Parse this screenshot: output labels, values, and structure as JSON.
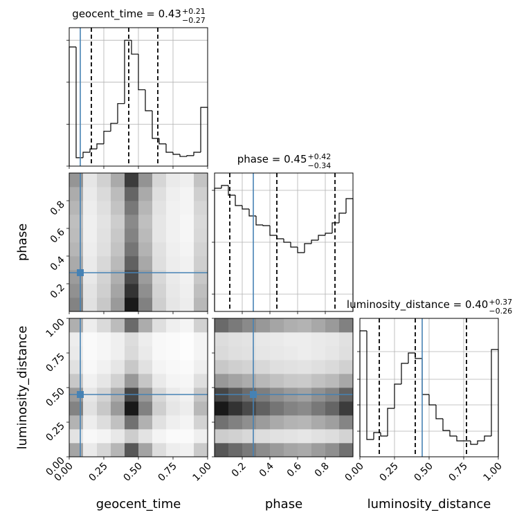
{
  "chart_data": [
    {
      "type": "histogram",
      "title": "geocent_time = 0.43",
      "title_sup": "+0.21",
      "title_sub": "−0.27",
      "bins": [
        0,
        0.05,
        0.1,
        0.15,
        0.2,
        0.25,
        0.3,
        0.35,
        0.4,
        0.45,
        0.5,
        0.55,
        0.6,
        0.65,
        0.7,
        0.75,
        0.8,
        0.85,
        0.9,
        0.95,
        1
      ],
      "values": [
        284,
        20,
        33,
        41,
        53,
        83,
        102,
        149,
        300,
        267,
        182,
        132,
        66,
        53,
        33,
        28,
        23,
        25,
        33,
        140
      ],
      "quantiles": [
        0.16,
        0.43,
        0.64
      ],
      "truth": 0.08,
      "xlim": [
        0,
        1
      ],
      "xticks": [
        0,
        0.25,
        0.5,
        0.75,
        1
      ],
      "ylim": [
        0,
        330
      ],
      "yticks": [
        0,
        100,
        200,
        300
      ],
      "grid": true,
      "xticklabels": false
    },
    {
      "type": "hist2d",
      "ylabel": "phase",
      "xlim": [
        0,
        1
      ],
      "xticks": [
        0,
        0.25,
        0.5,
        0.75,
        1
      ],
      "ylim": [
        0,
        1
      ],
      "yticks": [
        0.2,
        0.4,
        0.6,
        0.8
      ],
      "grid": false,
      "xticklabels": false,
      "yticklabels": true,
      "truth": [
        0.08,
        0.28
      ],
      "z": [
        [
          0.54,
          0.13,
          0.24,
          0.44,
          1.0,
          0.55,
          0.21,
          0.11,
          0.08,
          0.31
        ],
        [
          0.48,
          0.12,
          0.21,
          0.39,
          0.89,
          0.49,
          0.19,
          0.1,
          0.07,
          0.28
        ],
        [
          0.43,
          0.1,
          0.19,
          0.35,
          0.79,
          0.43,
          0.17,
          0.09,
          0.06,
          0.24
        ],
        [
          0.37,
          0.09,
          0.17,
          0.3,
          0.69,
          0.38,
          0.14,
          0.08,
          0.06,
          0.21
        ],
        [
          0.32,
          0.08,
          0.14,
          0.26,
          0.6,
          0.33,
          0.13,
          0.07,
          0.05,
          0.19
        ],
        [
          0.29,
          0.07,
          0.13,
          0.24,
          0.54,
          0.3,
          0.11,
          0.06,
          0.04,
          0.17
        ],
        [
          0.28,
          0.07,
          0.12,
          0.22,
          0.51,
          0.28,
          0.11,
          0.06,
          0.04,
          0.16
        ],
        [
          0.32,
          0.08,
          0.14,
          0.26,
          0.59,
          0.32,
          0.12,
          0.06,
          0.05,
          0.18
        ],
        [
          0.36,
          0.09,
          0.16,
          0.29,
          0.67,
          0.37,
          0.14,
          0.07,
          0.05,
          0.21
        ],
        [
          0.46,
          0.11,
          0.2,
          0.37,
          0.85,
          0.47,
          0.18,
          0.09,
          0.07,
          0.26
        ]
      ]
    },
    {
      "type": "histogram",
      "title": "phase = 0.45",
      "title_sup": "+0.42",
      "title_sub": "−0.34",
      "bins": [
        0,
        0.05,
        0.1,
        0.15,
        0.2,
        0.25,
        0.3,
        0.35,
        0.4,
        0.45,
        0.5,
        0.55,
        0.6,
        0.65,
        0.7,
        0.75,
        0.8,
        0.85,
        0.9,
        0.95,
        1
      ],
      "values": [
        178,
        182,
        168,
        153,
        148,
        138,
        125,
        124,
        110,
        105,
        100,
        93,
        85,
        98,
        103,
        110,
        113,
        128,
        142,
        163
      ],
      "quantiles": [
        0.11,
        0.45,
        0.87
      ],
      "truth": 0.28,
      "xlim": [
        0,
        1
      ],
      "xticks": [
        0.2,
        0.4,
        0.6,
        0.8
      ],
      "ylim": [
        0,
        200
      ],
      "yticks": [
        25,
        100,
        175
      ],
      "grid": true,
      "xticklabels": false
    },
    {
      "type": "hist2d",
      "xlabel": "geocent_time",
      "ylabel": "luminosity_distance",
      "xlim": [
        0,
        1
      ],
      "xticks": [
        {
          "value": 0,
          "label": "0.00"
        },
        {
          "value": 0.25,
          "label": "0.25"
        },
        {
          "value": 0.5,
          "label": "0.50"
        },
        {
          "value": 0.75,
          "label": "0.75"
        },
        {
          "value": 1,
          "label": "1.00"
        }
      ],
      "ylim": [
        0,
        1
      ],
      "yticks": [
        {
          "value": 0,
          "label": "0.00"
        },
        {
          "value": 0.25,
          "label": "0.25"
        },
        {
          "value": 0.5,
          "label": "0.50"
        },
        {
          "value": 0.75,
          "label": "0.75"
        },
        {
          "value": 1,
          "label": "1.00"
        }
      ],
      "grid": false,
      "xticklabels": true,
      "yticklabels": true,
      "truth": [
        0.08,
        0.45
      ],
      "z": [
        [
          0.39,
          0.09,
          0.18,
          0.32,
          0.73,
          0.4,
          0.15,
          0.08,
          0.06,
          0.23
        ],
        [
          0.12,
          0.03,
          0.05,
          0.1,
          0.22,
          0.12,
          0.05,
          0.02,
          0.02,
          0.07
        ],
        [
          0.33,
          0.08,
          0.15,
          0.27,
          0.62,
          0.34,
          0.13,
          0.07,
          0.05,
          0.19
        ],
        [
          0.54,
          0.13,
          0.24,
          0.44,
          1.0,
          0.55,
          0.21,
          0.11,
          0.08,
          0.31
        ],
        [
          0.44,
          0.11,
          0.19,
          0.36,
          0.81,
          0.45,
          0.17,
          0.09,
          0.06,
          0.25
        ],
        [
          0.24,
          0.06,
          0.11,
          0.2,
          0.45,
          0.25,
          0.09,
          0.05,
          0.04,
          0.14
        ],
        [
          0.13,
          0.03,
          0.06,
          0.11,
          0.24,
          0.13,
          0.05,
          0.03,
          0.02,
          0.07
        ],
        [
          0.09,
          0.02,
          0.04,
          0.07,
          0.16,
          0.09,
          0.03,
          0.02,
          0.01,
          0.05
        ],
        [
          0.08,
          0.02,
          0.04,
          0.07,
          0.15,
          0.08,
          0.03,
          0.02,
          0.01,
          0.05
        ],
        [
          0.35,
          0.08,
          0.16,
          0.29,
          0.65,
          0.36,
          0.14,
          0.07,
          0.05,
          0.2
        ]
      ]
    },
    {
      "type": "hist2d",
      "xlabel": "phase",
      "xlim": [
        0,
        1
      ],
      "xticks": [
        0.2,
        0.4,
        0.6,
        0.8
      ],
      "ylim": [
        0,
        1
      ],
      "yticks": [
        0,
        0.25,
        0.5,
        0.75,
        1
      ],
      "grid": false,
      "xticklabels": true,
      "yticklabels": false,
      "truth": [
        0.28,
        0.45
      ],
      "z": [
        [
          0.73,
          0.65,
          0.58,
          0.5,
          0.44,
          0.39,
          0.37,
          0.43,
          0.49,
          0.62
        ],
        [
          0.22,
          0.2,
          0.17,
          0.15,
          0.13,
          0.12,
          0.11,
          0.13,
          0.15,
          0.19
        ],
        [
          0.62,
          0.55,
          0.49,
          0.43,
          0.37,
          0.33,
          0.32,
          0.37,
          0.42,
          0.53
        ],
        [
          1.0,
          0.89,
          0.79,
          0.69,
          0.6,
          0.54,
          0.51,
          0.59,
          0.67,
          0.85
        ],
        [
          0.81,
          0.72,
          0.64,
          0.56,
          0.49,
          0.44,
          0.41,
          0.48,
          0.54,
          0.69
        ],
        [
          0.45,
          0.4,
          0.36,
          0.31,
          0.27,
          0.24,
          0.23,
          0.27,
          0.3,
          0.38
        ],
        [
          0.24,
          0.21,
          0.19,
          0.17,
          0.14,
          0.13,
          0.12,
          0.14,
          0.16,
          0.2
        ],
        [
          0.16,
          0.14,
          0.13,
          0.11,
          0.1,
          0.09,
          0.08,
          0.09,
          0.11,
          0.14
        ],
        [
          0.15,
          0.13,
          0.12,
          0.1,
          0.09,
          0.08,
          0.08,
          0.09,
          0.1,
          0.13
        ],
        [
          0.65,
          0.58,
          0.51,
          0.45,
          0.39,
          0.35,
          0.33,
          0.38,
          0.44,
          0.55
        ]
      ]
    },
    {
      "type": "histogram",
      "title": "luminosity_distance = 0.40",
      "title_sup": "+0.37",
      "title_sub": "−0.26",
      "xlabel": "luminosity_distance",
      "bins": [
        0,
        0.05,
        0.1,
        0.15,
        0.2,
        0.25,
        0.3,
        0.35,
        0.4,
        0.45,
        0.5,
        0.55,
        0.6,
        0.65,
        0.7,
        0.75,
        0.8,
        0.85,
        0.9,
        0.95,
        1
      ],
      "values": [
        182,
        25,
        35,
        30,
        70,
        105,
        135,
        150,
        142,
        90,
        75,
        55,
        38,
        30,
        23,
        23,
        18,
        23,
        30,
        155
      ],
      "quantiles": [
        0.14,
        0.4,
        0.77
      ],
      "truth": 0.45,
      "xlim": [
        0,
        1
      ],
      "xticks": [
        {
          "value": 0,
          "label": "0.00"
        },
        {
          "value": 0.25,
          "label": "0.25"
        },
        {
          "value": 0.5,
          "label": "0.50"
        },
        {
          "value": 0.75,
          "label": "0.75"
        },
        {
          "value": 1,
          "label": "1.00"
        }
      ],
      "ylim": [
        0,
        200
      ],
      "yticks": [
        37,
        75,
        112,
        152
      ],
      "grid": true,
      "xticklabels": true
    }
  ]
}
